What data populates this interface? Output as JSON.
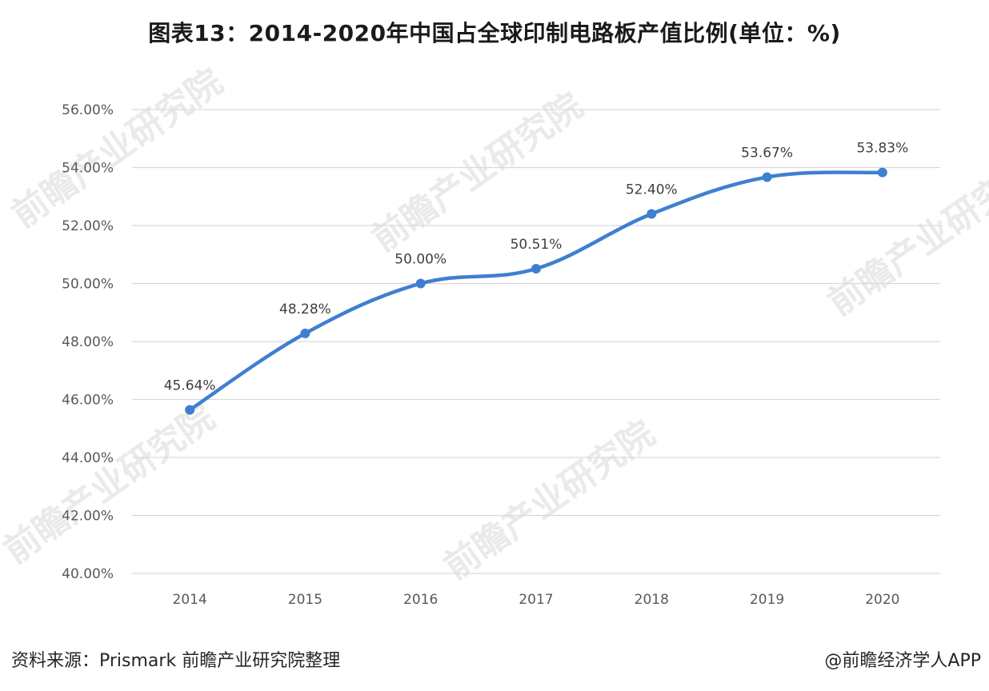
{
  "title": "图表13：2014-2020年中国占全球印制电路板产值比例(单位：%)",
  "source": "资料来源：Prismark 前瞻产业研究院整理",
  "credit": "@前瞻经济学人APP",
  "watermark": "前瞻产业研究院",
  "colors": {
    "line": "#3f7fd1",
    "marker": "#3f7fd1",
    "grid": "#d9d9d9"
  },
  "chart_data": {
    "type": "line",
    "title": "图表13：2014-2020年中国占全球印制电路板产值比例(单位：%)",
    "categories": [
      "2014",
      "2015",
      "2016",
      "2017",
      "2018",
      "2019",
      "2020"
    ],
    "series": [
      {
        "values": [
          45.64,
          48.28,
          50.0,
          50.51,
          52.4,
          53.67,
          53.83
        ],
        "labels": [
          "45.64%",
          "48.28%",
          "50.00%",
          "50.51%",
          "52.40%",
          "53.67%",
          "53.83%"
        ]
      }
    ],
    "yticks": [
      "40.00%",
      "42.00%",
      "44.00%",
      "46.00%",
      "48.00%",
      "50.00%",
      "52.00%",
      "54.00%",
      "56.00%"
    ],
    "ylim": [
      40,
      56
    ],
    "smooth": true,
    "grid": true,
    "legend": "none"
  }
}
